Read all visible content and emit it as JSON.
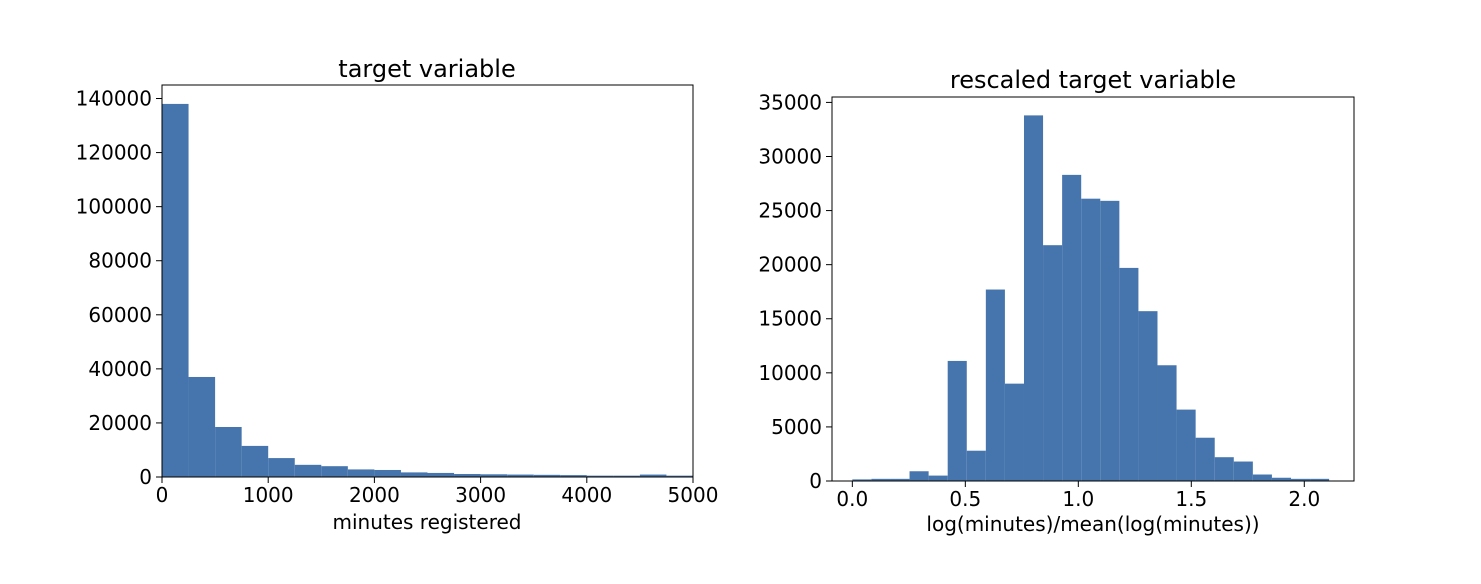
{
  "chart_data": [
    {
      "type": "bar",
      "title": "target variable",
      "xlabel": "minutes registered",
      "ylabel": "",
      "xlim": [
        0,
        5000
      ],
      "ylim": [
        0,
        145000
      ],
      "grid": false,
      "color": "#4575ac",
      "xticks": [
        0,
        1000,
        2000,
        3000,
        4000,
        5000
      ],
      "xtick_labels": [
        "0",
        "1000",
        "2000",
        "3000",
        "4000",
        "5000"
      ],
      "yticks": [
        0,
        20000,
        40000,
        60000,
        80000,
        100000,
        120000,
        140000
      ],
      "ytick_labels": [
        "0",
        "20000",
        "40000",
        "60000",
        "80000",
        "100000",
        "120000",
        "140000"
      ],
      "bin_edges": [
        0,
        250,
        500,
        750,
        1000,
        1250,
        1500,
        1750,
        2000,
        2250,
        2500,
        2750,
        3000,
        3250,
        3500,
        3750,
        4000,
        4250,
        4500,
        4750,
        5000
      ],
      "values": [
        138000,
        37000,
        18500,
        11500,
        7000,
        4500,
        4000,
        2800,
        2600,
        1700,
        1500,
        1100,
        1000,
        900,
        800,
        700,
        500,
        500,
        900,
        500
      ]
    },
    {
      "type": "bar",
      "title": "rescaled target variable",
      "xlabel": "log(minutes)/mean(log(minutes))",
      "ylabel": "",
      "xlim": [
        -0.09,
        2.22
      ],
      "ylim": [
        0,
        35500
      ],
      "grid": false,
      "color": "#4575ac",
      "xticks": [
        0.0,
        0.5,
        1.0,
        1.5,
        2.0
      ],
      "xtick_labels": [
        "0.0",
        "0.5",
        "1.0",
        "1.5",
        "2.0"
      ],
      "yticks": [
        0,
        5000,
        10000,
        15000,
        20000,
        25000,
        30000,
        35000
      ],
      "ytick_labels": [
        "0",
        "5000",
        "10000",
        "15000",
        "20000",
        "25000",
        "30000",
        "35000"
      ],
      "bin_edges": [
        0.0,
        0.0844,
        0.1688,
        0.2532,
        0.3376,
        0.422,
        0.5064,
        0.5908,
        0.6752,
        0.7596,
        0.844,
        0.9284,
        1.0128,
        1.0972,
        1.1816,
        1.266,
        1.3504,
        1.4348,
        1.5192,
        1.6036,
        1.688,
        1.7724,
        1.8568,
        1.9412,
        2.0256,
        2.11
      ],
      "values": [
        150,
        200,
        200,
        900,
        500,
        11100,
        2800,
        17700,
        9000,
        33800,
        21800,
        28300,
        26100,
        25900,
        19700,
        15700,
        10700,
        6600,
        4000,
        2200,
        1800,
        600,
        300,
        200,
        200
      ]
    }
  ]
}
